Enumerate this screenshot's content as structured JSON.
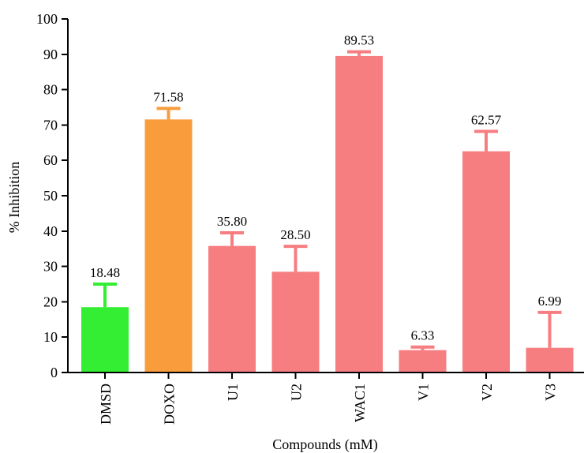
{
  "chart_data": {
    "type": "bar",
    "title": "",
    "xlabel": "Compounds (mM)",
    "ylabel": "% Inhibition",
    "ylim": [
      0,
      100
    ],
    "yticks": [
      0,
      10,
      20,
      30,
      40,
      50,
      60,
      70,
      80,
      90,
      100
    ],
    "ytick_labels": [
      "0",
      "10",
      "20",
      "30",
      "40",
      "50",
      "60",
      "70",
      "80",
      "90",
      "100"
    ],
    "grid": false,
    "legend": "none",
    "categories": [
      "DMSD",
      "DOXO",
      "U1",
      "U2",
      "WAC1",
      "V1",
      "V2",
      "V3"
    ],
    "values": [
      18.48,
      71.58,
      35.8,
      28.5,
      89.53,
      6.33,
      62.57,
      6.99
    ],
    "value_labels": [
      "18.48",
      "71.58",
      "35.80",
      "28.50",
      "89.53",
      "6.33",
      "62.57",
      "6.99"
    ],
    "error_upper": [
      25.0,
      74.7,
      39.5,
      35.7,
      90.7,
      7.2,
      68.2,
      17.0
    ],
    "colors": [
      "#33ee33",
      "#f89c3c",
      "#f77e80",
      "#f77e80",
      "#f77e80",
      "#f77e80",
      "#f77e80",
      "#f77e80"
    ]
  }
}
